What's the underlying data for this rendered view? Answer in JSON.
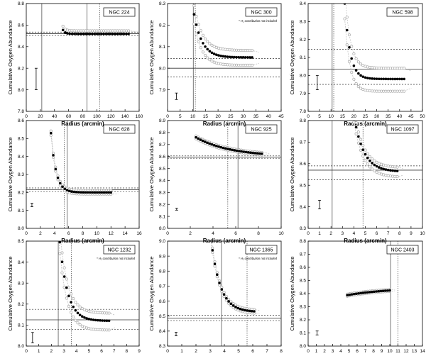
{
  "chart_data": [
    {
      "type": "scatter",
      "galaxy": "NGC 224",
      "xlabel": "Radius (arcmin)",
      "ylabel": "Cumulative Oxygen Abundance",
      "xlim": [
        0,
        160
      ],
      "ylim": [
        7.8,
        8.8
      ],
      "xticks": [
        0,
        20,
        40,
        60,
        80,
        100,
        120,
        140,
        160
      ],
      "yticks": [
        7.8,
        8.0,
        8.2,
        8.4,
        8.6,
        8.8
      ],
      "xtick_labels": [
        "0",
        "20",
        "40",
        "60",
        "80",
        "100",
        "120",
        "140",
        "160"
      ],
      "ytick_labels": [
        "7.8",
        "8.0",
        "8.2",
        "8.4",
        "8.6",
        "8.8"
      ],
      "curve": {
        "x0": 52,
        "x1": 145,
        "a": 8.519,
        "b": 0.036,
        "k": 3.0
      },
      "spread_upper": 0.035,
      "spread_lower": 0.0,
      "solid_vlines": [
        22,
        86
      ],
      "dotted_vlines": [
        104
      ],
      "hline": 8.52,
      "hline_band": [
        8.505,
        8.535
      ],
      "error_bar": {
        "x": 14,
        "y": 8.1,
        "err": 0.1
      },
      "note": ""
    },
    {
      "type": "scatter",
      "galaxy": "NGC 300",
      "xlabel": "Radius (arcmin)",
      "ylabel": "Cumulative Oxygen Abundance",
      "xlim": [
        0,
        45
      ],
      "ylim": [
        7.8,
        8.3
      ],
      "xticks": [
        0,
        5,
        10,
        15,
        20,
        25,
        30,
        35,
        40,
        45
      ],
      "yticks": [
        7.9,
        8.0,
        8.1,
        8.2,
        8.3
      ],
      "xtick_labels": [
        "0",
        "5",
        "10",
        "15",
        "20",
        "25",
        "30",
        "35",
        "40",
        "45"
      ],
      "ytick_labels": [
        "7.9",
        "8.0",
        "8.1",
        "8.2",
        "8.3"
      ],
      "curve": {
        "x0": 10.5,
        "x1": 33.5,
        "a": 8.05,
        "b": 0.2,
        "k": 3.2
      },
      "spread_upper": 0.04,
      "spread_lower": 0.045,
      "solid_vlines": [
        10.2
      ],
      "dotted_vlines": [
        11.0
      ],
      "hline": 8.0,
      "hline_band": [
        7.96,
        8.045
      ],
      "error_bar": {
        "x": 3.5,
        "y": 7.87,
        "err": 0.015
      },
      "note": "* H₂ contribution not included"
    },
    {
      "type": "scatter",
      "galaxy": "NGC 598",
      "xlabel": "Radius (arcmin)",
      "ylabel": "Cumulative Oxygen Abundance",
      "xlim": [
        0,
        50
      ],
      "ylim": [
        7.8,
        8.4
      ],
      "xticks": [
        0,
        5,
        10,
        15,
        20,
        25,
        30,
        35,
        40,
        45,
        50
      ],
      "yticks": [
        7.8,
        7.9,
        8.0,
        8.1,
        8.2,
        8.3,
        8.4
      ],
      "xtick_labels": [
        "0",
        "5",
        "10",
        "15",
        "20",
        "25",
        "30",
        "35",
        "40",
        "45",
        "50"
      ],
      "ytick_labels": [
        "7.8",
        "7.9",
        "8.0",
        "8.1",
        "8.2",
        "8.3",
        "8.4"
      ],
      "curve": {
        "x0": 16,
        "x1": 42,
        "a": 7.98,
        "b": 0.42,
        "k": 2.3
      },
      "spread_upper": 0.075,
      "spread_lower": 0.085,
      "solid_vlines": [
        10.5
      ],
      "dotted_vlines": [
        11.2
      ],
      "hline": 8.035,
      "hline_band": [
        7.95,
        8.145
      ],
      "error_bar": {
        "x": 4,
        "y": 7.96,
        "err": 0.04
      },
      "note": ""
    },
    {
      "type": "scatter",
      "galaxy": "NGC 628",
      "xlabel": "Radius (arcmin)",
      "ylabel": "Cumulative Oxygen Abundance",
      "xlim": [
        0,
        16
      ],
      "ylim": [
        8.0,
        8.6
      ],
      "xticks": [
        0,
        2,
        4,
        6,
        8,
        10,
        12,
        14,
        16
      ],
      "yticks": [
        8.0,
        8.1,
        8.2,
        8.3,
        8.4,
        8.5,
        8.6
      ],
      "xtick_labels": [
        "0",
        "2",
        "4",
        "6",
        "8",
        "10",
        "12",
        "14",
        "16"
      ],
      "ytick_labels": [
        "8.0",
        "8.1",
        "8.2",
        "8.3",
        "8.4",
        "8.5",
        "8.6"
      ],
      "curve": {
        "x0": 3.5,
        "x1": 12,
        "a": 8.2,
        "b": 0.33,
        "k": 0.7
      },
      "spread_upper": 0.012,
      "spread_lower": 0.012,
      "solid_vlines": [
        5.8
      ],
      "dotted_vlines": [
        5.4
      ],
      "hline": 8.215,
      "hline_band": [
        8.205,
        8.225
      ],
      "error_bar": {
        "x": 0.8,
        "y": 8.13,
        "err": 0.01
      },
      "note": ""
    },
    {
      "type": "scatter",
      "galaxy": "NGC 925",
      "xlabel": "Radius (arcmin)",
      "ylabel": "Cumulative Oxygen Abundance",
      "xlim": [
        0,
        10
      ],
      "ylim": [
        8.0,
        8.9
      ],
      "xticks": [
        0,
        2,
        4,
        6,
        8,
        10
      ],
      "yticks": [
        8.0,
        8.1,
        8.2,
        8.3,
        8.4,
        8.5,
        8.6,
        8.7,
        8.8,
        8.9
      ],
      "xtick_labels": [
        "0",
        "2",
        "4",
        "6",
        "8",
        "10"
      ],
      "ytick_labels": [
        "8.0",
        "8.1",
        "8.2",
        "8.3",
        "8.4",
        "8.5",
        "8.6",
        "8.7",
        "8.8",
        "8.9"
      ],
      "curve": {
        "x0": 2.5,
        "x1": 8.3,
        "a": 8.6,
        "b": 0.16,
        "k": 3.0
      },
      "spread_upper": 0.012,
      "spread_lower": 0.012,
      "solid_vlines": [
        6.2
      ],
      "dotted_vlines": [
        5.3
      ],
      "hline": 8.595,
      "hline_band": [
        8.585,
        8.605
      ],
      "error_bar": {
        "x": 0.8,
        "y": 8.16,
        "err": 0.008
      },
      "note": ""
    },
    {
      "type": "scatter",
      "galaxy": "NGC 1097",
      "xlabel": "Radius (arcmin)",
      "ylabel": "Cumulative Oxygen Abundance",
      "xlim": [
        0,
        10
      ],
      "ylim": [
        8.3,
        8.8
      ],
      "xticks": [
        0,
        1,
        2,
        3,
        4,
        5,
        6,
        7,
        8,
        9,
        10
      ],
      "yticks": [
        8.3,
        8.4,
        8.5,
        8.6,
        8.7,
        8.8
      ],
      "xtick_labels": [
        "0",
        "1",
        "2",
        "3",
        "4",
        "5",
        "6",
        "7",
        "8",
        "9",
        "10"
      ],
      "ytick_labels": [
        "8.3",
        "8.4",
        "8.5",
        "8.6",
        "8.7",
        "8.8"
      ],
      "curve": {
        "x0": 3.8,
        "x1": 7.8,
        "a": 8.563,
        "b": 0.33,
        "k": 0.85
      },
      "spread_upper": 0.022,
      "spread_lower": 0.032,
      "solid_vlines": [
        2.1
      ],
      "dotted_vlines": [
        4.8
      ],
      "hline": 8.57,
      "hline_band": [
        8.525,
        8.59
      ],
      "error_bar": {
        "x": 1,
        "y": 8.41,
        "err": 0.02
      },
      "note": ""
    },
    {
      "type": "scatter",
      "galaxy": "NGC 1232",
      "xlabel": "Radius (arcmin)",
      "ylabel": "Cumulative Oxygen Abundance",
      "xlim": [
        0,
        9
      ],
      "ylim": [
        8.0,
        8.5
      ],
      "xticks": [
        0,
        1,
        2,
        3,
        4,
        5,
        6,
        7,
        8,
        9
      ],
      "yticks": [
        8.0,
        8.1,
        8.2,
        8.3,
        8.4,
        8.5
      ],
      "xtick_labels": [
        "0",
        "1",
        "2",
        "3",
        "4",
        "5",
        "6",
        "7",
        "8",
        "9"
      ],
      "ytick_labels": [
        "8.0",
        "8.1",
        "8.2",
        "8.3",
        "8.4",
        "8.5"
      ],
      "curve": {
        "x0": 2.5,
        "x1": 6.6,
        "a": 8.12,
        "b": 0.5,
        "k": 0.62
      },
      "spread_upper": 0.045,
      "spread_lower": 0.055,
      "solid_vlines": [
        2.55
      ],
      "dotted_vlines": [
        3.6
      ],
      "hline": 8.125,
      "hline_band": [
        8.08,
        8.175
      ],
      "error_bar": {
        "x": 0.5,
        "y": 8.04,
        "err": 0.025
      },
      "note": "* H₂ contribution not included"
    },
    {
      "type": "scatter",
      "galaxy": "NGC 1365",
      "xlabel": "Radius (arcmin)",
      "ylabel": "Cumulative Oxygen Abundance",
      "xlim": [
        0,
        8
      ],
      "ylim": [
        8.3,
        9.0
      ],
      "xticks": [
        0,
        1,
        2,
        3,
        4,
        5,
        6,
        7,
        8
      ],
      "yticks": [
        8.3,
        8.4,
        8.5,
        8.6,
        8.7,
        8.8,
        8.9,
        9.0
      ],
      "xtick_labels": [
        "0",
        "1",
        "2",
        "3",
        "4",
        "5",
        "6",
        "7",
        "8"
      ],
      "ytick_labels": [
        "8.3",
        "8.4",
        "8.5",
        "8.6",
        "8.7",
        "8.8",
        "8.9",
        "9.0"
      ],
      "curve": {
        "x0": 3.0,
        "x1": 6.1,
        "a": 8.527,
        "b": 0.53,
        "k": 0.65
      },
      "spread_upper": 0.015,
      "spread_lower": 0.015,
      "solid_vlines": [
        3.8
      ],
      "dotted_vlines": [
        5.6
      ],
      "hline": 8.485,
      "hline_band": [
        8.47,
        8.505
      ],
      "error_bar": {
        "x": 0.6,
        "y": 8.38,
        "err": 0.012
      },
      "note": "* H₂ contribution not included"
    },
    {
      "type": "scatter",
      "galaxy": "NGC 2403",
      "xlabel": "Radius (arcmin)",
      "ylabel": "Cumulative Oxygen Abundance",
      "xlim": [
        0,
        14
      ],
      "ylim": [
        8.0,
        8.8
      ],
      "xticks": [
        0,
        1,
        2,
        3,
        4,
        5,
        6,
        7,
        8,
        9,
        10,
        11,
        12,
        13,
        14
      ],
      "yticks": [
        8.0,
        8.1,
        8.2,
        8.3,
        8.4,
        8.5,
        8.6,
        8.7,
        8.8
      ],
      "xtick_labels": [
        "0",
        "1",
        "2",
        "3",
        "4",
        "5",
        "6",
        "7",
        "8",
        "9",
        "10",
        "11",
        "12",
        "13",
        "14"
      ],
      "ytick_labels": [
        "8.0",
        "8.1",
        "8.2",
        "8.3",
        "8.4",
        "8.5",
        "8.6",
        "8.7",
        "8.8"
      ],
      "curve": {
        "x0": 4.8,
        "x1": 10.0,
        "a": 8.445,
        "b": -0.057,
        "k": 5.2
      },
      "spread_upper": 0.008,
      "spread_lower": 0.008,
      "solid_vlines": [
        10.1
      ],
      "dotted_vlines": [
        11.0
      ],
      "hline": null,
      "hline_band": [],
      "error_bar": {
        "x": 1.1,
        "y": 8.1,
        "err": 0.015
      },
      "note": ""
    }
  ]
}
